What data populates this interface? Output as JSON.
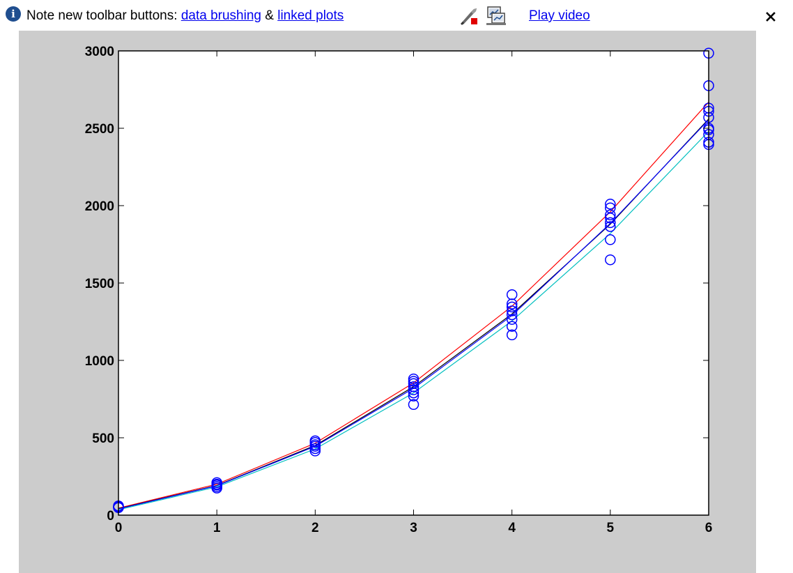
{
  "infobar": {
    "icon": "info-icon",
    "note_prefix": "Note new toolbar buttons:",
    "link_brushing": "data brushing",
    "ampersand": "&",
    "link_linked": "linked plots",
    "brush_icon": "data-brushing-icon",
    "linked_icon": "linked-plots-icon",
    "play_video": "Play video",
    "close_icon": "close-icon"
  },
  "chart_data": {
    "type": "scatter",
    "title": "",
    "xlabel": "",
    "ylabel": "",
    "xlim": [
      0,
      6
    ],
    "ylim": [
      0,
      3000
    ],
    "x_ticks": [
      0,
      1,
      2,
      3,
      4,
      5,
      6
    ],
    "y_ticks": [
      0,
      500,
      1000,
      1500,
      2000,
      2500,
      3000
    ],
    "grid": false,
    "legend": "none",
    "background": "#ffffff",
    "figure_color": "#cccccc",
    "scatter": {
      "marker": "circle",
      "color": "#0000ff",
      "points": [
        [
          0,
          50
        ],
        [
          0,
          55
        ],
        [
          0,
          60
        ],
        [
          0,
          48
        ],
        [
          1,
          175
        ],
        [
          1,
          185
        ],
        [
          1,
          195
        ],
        [
          1,
          200
        ],
        [
          1,
          210
        ],
        [
          2,
          415
        ],
        [
          2,
          430
        ],
        [
          2,
          445
        ],
        [
          2,
          455
        ],
        [
          2,
          470
        ],
        [
          2,
          480
        ],
        [
          3,
          715
        ],
        [
          3,
          770
        ],
        [
          3,
          790
        ],
        [
          3,
          810
        ],
        [
          3,
          830
        ],
        [
          3,
          850
        ],
        [
          3,
          865
        ],
        [
          3,
          880
        ],
        [
          4,
          1165
        ],
        [
          4,
          1220
        ],
        [
          4,
          1265
        ],
        [
          4,
          1295
        ],
        [
          4,
          1320
        ],
        [
          4,
          1345
        ],
        [
          4,
          1365
        ],
        [
          4,
          1425
        ],
        [
          5,
          1650
        ],
        [
          5,
          1780
        ],
        [
          5,
          1865
        ],
        [
          5,
          1890
        ],
        [
          5,
          1920
        ],
        [
          5,
          1940
        ],
        [
          5,
          1985
        ],
        [
          5,
          2010
        ],
        [
          6,
          2395
        ],
        [
          6,
          2410
        ],
        [
          6,
          2460
        ],
        [
          6,
          2490
        ],
        [
          6,
          2500
        ],
        [
          6,
          2570
        ],
        [
          6,
          2610
        ],
        [
          6,
          2630
        ],
        [
          6,
          2775
        ],
        [
          6,
          2985
        ]
      ]
    },
    "lines": [
      {
        "color": "#ff0000",
        "x": [
          0,
          1,
          2,
          3,
          4,
          5,
          6
        ],
        "y": [
          45,
          200,
          465,
          855,
          1350,
          1960,
          2670
        ]
      },
      {
        "color": "#000000",
        "x": [
          0,
          1,
          2,
          3,
          4,
          5,
          6
        ],
        "y": [
          42,
          192,
          450,
          830,
          1300,
          1880,
          2560
        ]
      },
      {
        "color": "#0000ff",
        "x": [
          0,
          1,
          2,
          3,
          4,
          5,
          6
        ],
        "y": [
          40,
          190,
          445,
          820,
          1290,
          1885,
          2555
        ]
      },
      {
        "color": "#00bfbf",
        "x": [
          0,
          1,
          2,
          3,
          4,
          5,
          6
        ],
        "y": [
          35,
          183,
          428,
          790,
          1255,
          1820,
          2480
        ]
      }
    ]
  }
}
